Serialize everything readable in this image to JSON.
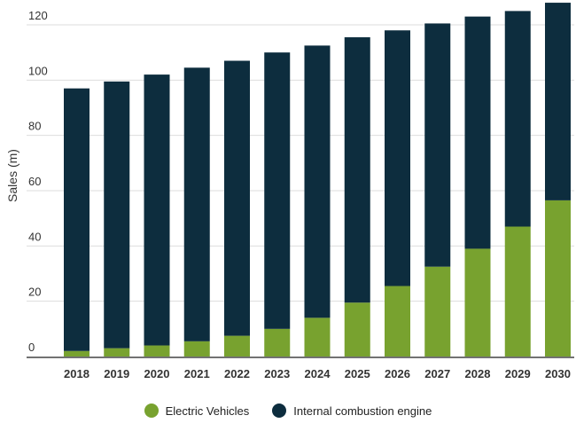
{
  "chart_data": {
    "type": "bar",
    "stacked": true,
    "title": "",
    "xlabel": "",
    "ylabel": "Sales (m)",
    "ylim": [
      0,
      120
    ],
    "yticks": [
      0,
      20,
      40,
      60,
      80,
      100,
      120
    ],
    "grid": true,
    "legend_position": "bottom",
    "categories": [
      "2018",
      "2019",
      "2020",
      "2021",
      "2022",
      "2023",
      "2024",
      "2025",
      "2026",
      "2027",
      "2028",
      "2029",
      "2030"
    ],
    "series": [
      {
        "name": "Electric Vehicles",
        "color": "#78a22f",
        "values": [
          2,
          3,
          4,
          5.5,
          7.5,
          10,
          14,
          19.5,
          25.5,
          32.5,
          39,
          47,
          56.5
        ]
      },
      {
        "name": "Internal combustion engine",
        "color": "#0d2d3e",
        "values": [
          95,
          96.5,
          98,
          99,
          99.5,
          100,
          98.5,
          96,
          92.5,
          88,
          84,
          78,
          71.5
        ]
      }
    ]
  }
}
